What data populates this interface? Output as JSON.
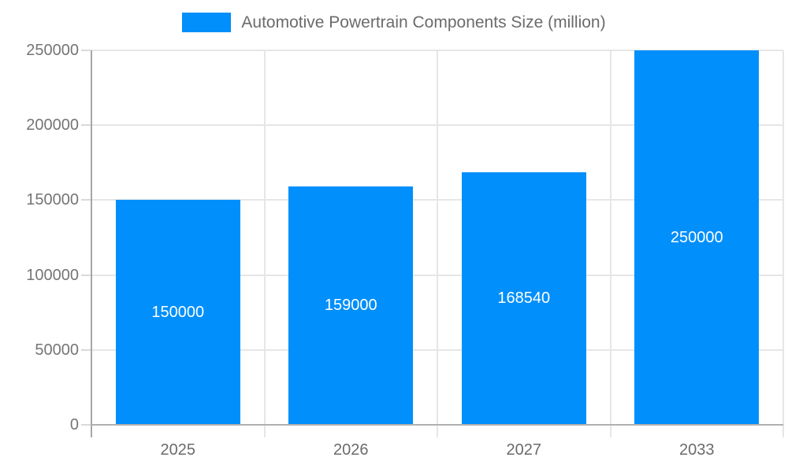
{
  "chart_data": {
    "type": "bar",
    "title": "Automotive Powertrain Components Size (million)",
    "categories": [
      "2025",
      "2026",
      "2027",
      "2033"
    ],
    "series": [
      {
        "name": "Automotive Powertrain Components Size (million)",
        "values": [
          150000,
          159000,
          168540,
          250000
        ],
        "data_labels": [
          "150000",
          "159000",
          "168540",
          "250000"
        ]
      }
    ],
    "xlabel": "",
    "ylabel": "",
    "ylim": [
      0,
      250000
    ],
    "ytick_step": 50000,
    "ytick_labels": [
      "0",
      "50000",
      "100000",
      "150000",
      "200000",
      "250000"
    ],
    "grid": true,
    "legend_position": "top"
  },
  "legend": {
    "label": "Automotive Powertrain Components Size (million)"
  },
  "colors": {
    "bar": "#008ffb",
    "legend_swatch": "#008ffb",
    "axis_text": "#757575",
    "gridline": "#e6e6e6",
    "axis_line": "#a6a6a6",
    "data_label_text": "#ffffff",
    "background": "#ffffff"
  }
}
